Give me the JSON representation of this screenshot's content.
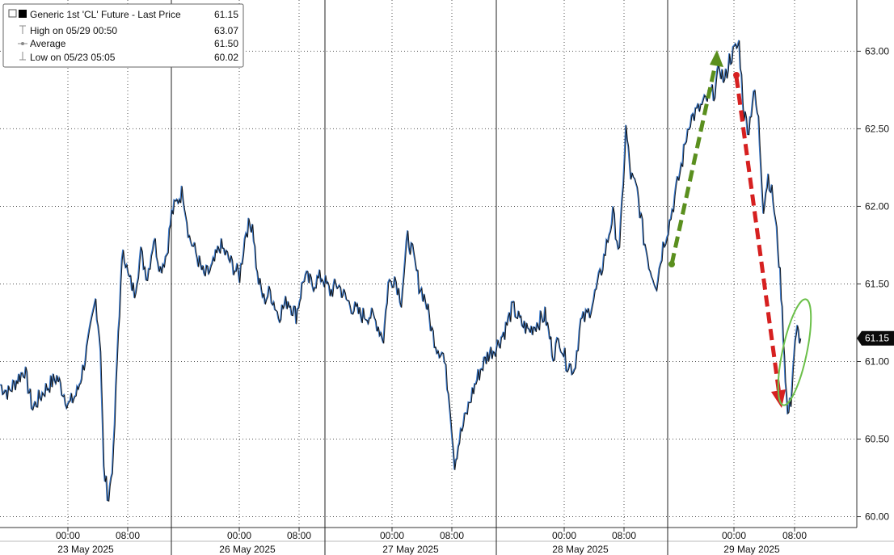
{
  "chart_data": {
    "type": "line",
    "ylim": [
      59.93,
      63.33
    ],
    "x_ticks": [
      "00:00",
      "08:00",
      "00:00",
      "08:00",
      "00:00",
      "08:00",
      "00:00",
      "08:00",
      "00:00",
      "08:00"
    ],
    "date_labels": [
      "23 May 2025",
      "26 May 2025",
      "27 May 2025",
      "28 May 2025",
      "29 May 2025"
    ],
    "y_ticks": [
      "60.00",
      "60.50",
      "61.00",
      "61.50",
      "62.00",
      "62.50",
      "63.00"
    ],
    "y_tick_values": [
      60.0,
      60.5,
      61.0,
      61.5,
      62.0,
      62.5,
      63.0
    ],
    "last_price_tag": "61.15",
    "last_price": 61.15,
    "grid": true,
    "legend_placement": "top-left",
    "legend": {
      "title": "Generic 1st 'CL' Future - Last Price",
      "title_value": "61.15",
      "rows": [
        {
          "label": "High on 05/29 00:50",
          "value": "63.07"
        },
        {
          "label": "Average",
          "value": "61.50"
        },
        {
          "label": "Low on 05/23 05:05",
          "value": "60.02"
        }
      ]
    },
    "series": [
      {
        "name": "Generic 1st 'CL' Future - Last Price",
        "color": "#111111",
        "secondary_color": "#3a78c9",
        "points": [
          [
            0,
            60.85
          ],
          [
            10,
            60.8
          ],
          [
            20,
            60.88
          ],
          [
            30,
            60.95
          ],
          [
            40,
            60.7
          ],
          [
            55,
            60.82
          ],
          [
            70,
            60.9
          ],
          [
            85,
            60.72
          ],
          [
            95,
            60.8
          ],
          [
            102,
            60.95
          ],
          [
            110,
            61.15
          ],
          [
            118,
            61.4
          ],
          [
            124,
            61.1
          ],
          [
            128,
            60.3
          ],
          [
            134,
            60.12
          ],
          [
            140,
            60.4
          ],
          [
            146,
            61.2
          ],
          [
            152,
            61.75
          ],
          [
            158,
            61.55
          ],
          [
            166,
            61.45
          ],
          [
            174,
            61.7
          ],
          [
            182,
            61.55
          ],
          [
            190,
            61.8
          ],
          [
            198,
            61.6
          ],
          [
            206,
            61.7
          ],
          [
            212,
            61.95
          ],
          [
            220,
            62.05
          ],
          [
            226,
            62.1
          ],
          [
            234,
            61.8
          ],
          [
            242,
            61.7
          ],
          [
            252,
            61.55
          ],
          [
            262,
            61.6
          ],
          [
            272,
            61.75
          ],
          [
            284,
            61.65
          ],
          [
            296,
            61.55
          ],
          [
            304,
            61.85
          ],
          [
            312,
            61.9
          ],
          [
            318,
            61.55
          ],
          [
            326,
            61.4
          ],
          [
            334,
            61.45
          ],
          [
            344,
            61.3
          ],
          [
            356,
            61.4
          ],
          [
            366,
            61.3
          ],
          [
            376,
            61.55
          ],
          [
            386,
            61.5
          ],
          [
            398,
            61.55
          ],
          [
            408,
            61.45
          ],
          [
            418,
            61.5
          ],
          [
            428,
            61.4
          ],
          [
            436,
            61.35
          ],
          [
            446,
            61.3
          ],
          [
            458,
            61.3
          ],
          [
            466,
            61.25
          ],
          [
            474,
            61.15
          ],
          [
            480,
            61.5
          ],
          [
            488,
            61.55
          ],
          [
            496,
            61.4
          ],
          [
            504,
            61.8
          ],
          [
            510,
            61.7
          ],
          [
            518,
            61.5
          ],
          [
            526,
            61.4
          ],
          [
            534,
            61.2
          ],
          [
            540,
            61.1
          ],
          [
            548,
            61.05
          ],
          [
            556,
            60.75
          ],
          [
            562,
            60.35
          ],
          [
            568,
            60.5
          ],
          [
            576,
            60.65
          ],
          [
            584,
            60.8
          ],
          [
            594,
            60.95
          ],
          [
            604,
            61.05
          ],
          [
            614,
            61.1
          ],
          [
            624,
            61.2
          ],
          [
            634,
            61.35
          ],
          [
            644,
            61.25
          ],
          [
            654,
            61.2
          ],
          [
            664,
            61.25
          ],
          [
            674,
            61.3
          ],
          [
            684,
            61.05
          ],
          [
            692,
            61.15
          ],
          [
            700,
            61.0
          ],
          [
            710,
            60.95
          ],
          [
            718,
            61.25
          ],
          [
            726,
            61.3
          ],
          [
            734,
            61.4
          ],
          [
            742,
            61.55
          ],
          [
            750,
            61.75
          ],
          [
            758,
            61.95
          ],
          [
            766,
            61.7
          ],
          [
            774,
            62.5
          ],
          [
            780,
            62.2
          ],
          [
            788,
            62.1
          ],
          [
            796,
            61.8
          ],
          [
            804,
            61.6
          ],
          [
            812,
            61.5
          ],
          [
            820,
            61.75
          ],
          [
            828,
            61.9
          ],
          [
            836,
            62.1
          ],
          [
            844,
            62.3
          ],
          [
            852,
            62.55
          ],
          [
            860,
            62.6
          ],
          [
            868,
            62.65
          ],
          [
            876,
            62.7
          ],
          [
            884,
            62.75
          ],
          [
            890,
            62.9
          ],
          [
            896,
            62.8
          ],
          [
            902,
            62.95
          ],
          [
            908,
            63.0
          ],
          [
            914,
            63.05
          ],
          [
            920,
            62.6
          ],
          [
            926,
            62.5
          ],
          [
            932,
            62.75
          ],
          [
            938,
            62.55
          ],
          [
            944,
            62.0
          ],
          [
            950,
            62.2
          ],
          [
            956,
            62.05
          ],
          [
            962,
            61.75
          ],
          [
            966,
            61.45
          ],
          [
            970,
            61.05
          ],
          [
            974,
            60.65
          ],
          [
            978,
            60.75
          ],
          [
            982,
            61.05
          ],
          [
            986,
            61.2
          ],
          [
            990,
            61.15
          ]
        ]
      }
    ]
  }
}
